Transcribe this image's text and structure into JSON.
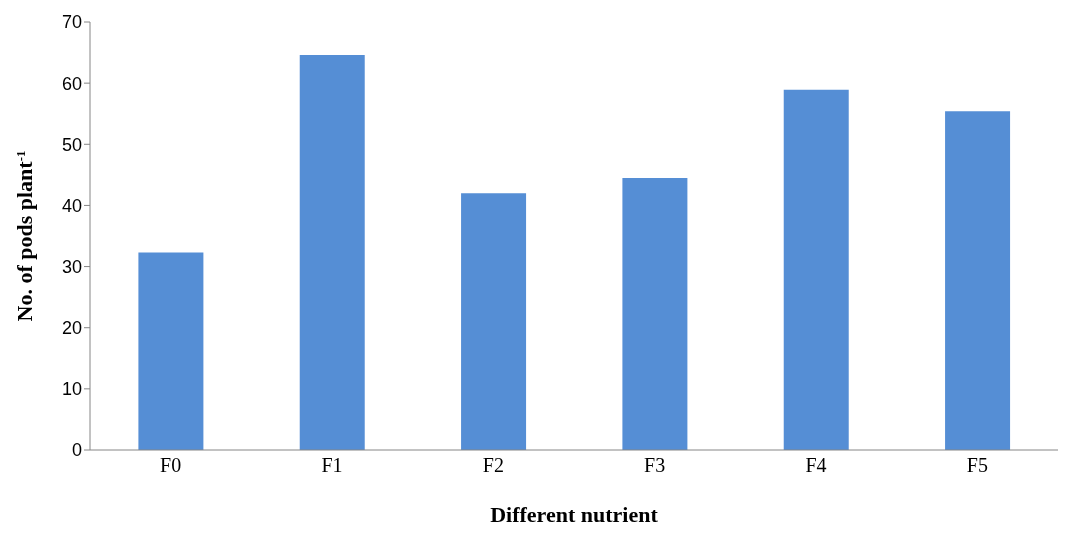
{
  "chart_data": {
    "type": "bar",
    "xlabel": "Different nutrient",
    "ylabel": "No. of pods plant$^{-1}$",
    "categories": [
      "F0",
      "F1",
      "F2",
      "F3",
      "F4",
      "F5"
    ],
    "values": [
      32.3,
      64.6,
      42.0,
      44.5,
      58.9,
      55.4
    ],
    "color": "#558ed5",
    "ylim": [
      0,
      70
    ],
    "yticks": [
      0,
      10,
      20,
      30,
      40,
      50,
      60,
      70
    ],
    "grid": false,
    "legend": false
  }
}
